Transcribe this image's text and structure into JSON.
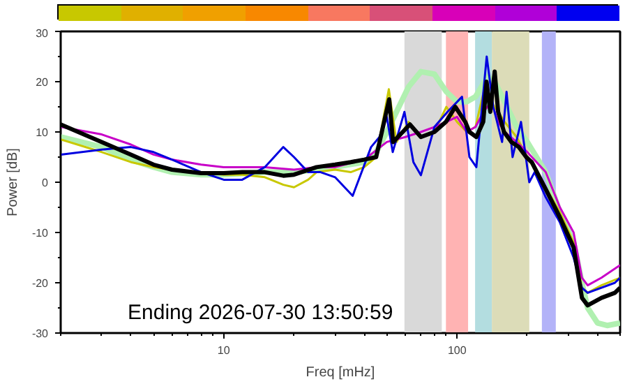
{
  "chart_data": {
    "type": "line",
    "xlabel": "Freq [mHz]",
    "ylabel": "Power [dB]",
    "log": "x",
    "xlim": [
      2,
      500
    ],
    "ylim": [
      -30,
      30
    ],
    "xticks": [
      10,
      100
    ],
    "yticks": [
      -30,
      -20,
      -10,
      0,
      10,
      20,
      30
    ],
    "grid": false,
    "annotations": [
      "Ending 2026-07-30 13:50:59"
    ],
    "bands": [
      {
        "axis": "x",
        "from": 59.5,
        "to": 86,
        "color": "#d9d9d9"
      },
      {
        "axis": "x",
        "from": 89.6,
        "to": 111.5,
        "color": "#ffb3b3"
      },
      {
        "axis": "x",
        "from": 119.5,
        "to": 141,
        "color": "#b3dde0"
      },
      {
        "axis": "x",
        "from": 141,
        "to": 204,
        "color": "#dcdcb8"
      },
      {
        "axis": "x",
        "from": 231,
        "to": 265,
        "color": "#b3b3f8"
      }
    ],
    "series": [
      {
        "color": "#b0f0b0",
        "x": [
          2,
          3,
          4,
          5,
          6,
          8,
          10,
          15,
          20,
          25,
          30,
          40,
          45,
          50,
          55,
          62,
          70,
          80,
          90,
          100,
          110,
          120,
          135,
          145,
          160,
          180,
          200,
          240,
          276,
          316,
          343,
          363,
          400,
          440,
          500
        ],
        "values": [
          9,
          7,
          4.5,
          3,
          2,
          1.5,
          1.5,
          2,
          2,
          2.5,
          3,
          4,
          6,
          10,
          14,
          19,
          22,
          21.5,
          18,
          16,
          16,
          17,
          21,
          20,
          16,
          11,
          8,
          2,
          -6,
          -12,
          -20,
          -25,
          -28,
          -28.5,
          -28
        ]
      },
      {
        "color": "#c8c800",
        "x": [
          2,
          3,
          4,
          5,
          6,
          8,
          10,
          12,
          15,
          18,
          20,
          23,
          25,
          30,
          35,
          40,
          45,
          51,
          55,
          62,
          70,
          80,
          90,
          100,
          110,
          120,
          130,
          140,
          150,
          160,
          180,
          200,
          240,
          276,
          316,
          343,
          363,
          416,
          500
        ],
        "values": [
          8.5,
          6,
          4,
          3,
          2.5,
          2,
          1.5,
          1.5,
          1,
          -0.5,
          -1,
          0.5,
          2,
          2.5,
          2,
          3,
          5,
          18.5,
          8,
          12,
          9,
          10,
          15,
          12,
          10,
          11,
          18,
          16,
          14,
          12,
          9,
          5,
          -1,
          -6,
          -12,
          -21,
          -22,
          -20.5,
          -19
        ]
      },
      {
        "color": "#c800c8",
        "x": [
          2,
          3,
          4,
          5,
          6,
          8,
          10,
          15,
          20,
          25,
          30,
          40,
          50,
          60,
          70,
          80,
          90,
          100,
          110,
          120,
          130,
          140,
          150,
          160,
          180,
          200,
          240,
          276,
          316,
          343,
          363,
          416,
          500
        ],
        "values": [
          11,
          9.5,
          7.5,
          5.5,
          4.5,
          3.5,
          3,
          3,
          2.5,
          3,
          3,
          4.5,
          8,
          9,
          10,
          11,
          12,
          13,
          10,
          11,
          14,
          16,
          12,
          10,
          8,
          6,
          2,
          -5,
          -10,
          -19,
          -20.5,
          -19,
          -16.5
        ]
      },
      {
        "color": "#0000e0",
        "x": [
          2,
          3,
          4,
          5,
          6,
          8,
          10,
          12,
          15,
          18,
          20,
          23,
          26,
          30,
          35.7,
          42.8,
          46.5,
          50,
          53,
          59.5,
          65,
          70,
          80,
          91,
          105,
          113,
          121,
          134,
          143,
          156,
          163,
          173,
          188,
          204,
          215,
          240,
          276,
          316,
          343,
          363,
          475,
          500
        ],
        "values": [
          5.5,
          6.5,
          7,
          6,
          4.5,
          2,
          0.5,
          0.5,
          3,
          7,
          5,
          2,
          2,
          1,
          -2.7,
          7,
          9,
          13,
          6,
          14,
          4,
          1.4,
          11,
          14,
          17,
          5,
          3,
          25,
          15,
          8,
          18,
          5,
          12,
          0,
          2,
          -3,
          -8,
          -15,
          -21,
          -22,
          -20,
          -19
        ]
      },
      {
        "color": "#000000",
        "x": [
          2,
          3,
          4,
          5,
          6,
          8,
          10,
          12,
          15,
          18,
          20,
          25,
          30,
          35,
          40,
          45,
          51.2,
          53.2,
          62.8,
          70,
          80,
          89.6,
          98.3,
          108.5,
          113,
          121,
          129.5,
          133.8,
          138.8,
          145,
          150,
          159,
          171,
          184,
          198,
          209,
          240,
          276,
          316,
          343,
          363,
          416,
          475,
          500
        ],
        "values": [
          11.5,
          8,
          5.5,
          3.5,
          2.5,
          1.8,
          1.8,
          2,
          2,
          1.3,
          1.5,
          3,
          3.5,
          4,
          4.5,
          5,
          16.5,
          8,
          11.5,
          9,
          10,
          12,
          15,
          12,
          10,
          9,
          12,
          20,
          14,
          22,
          14,
          10,
          8,
          7,
          5,
          4,
          -1.4,
          -7,
          -13,
          -23,
          -24.5,
          -23,
          -22,
          -21
        ]
      }
    ]
  }
}
